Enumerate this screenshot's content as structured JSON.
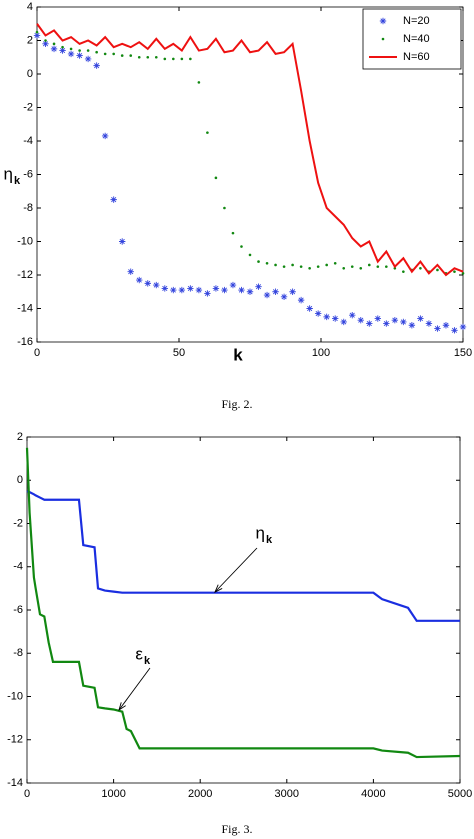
{
  "chart_data": [
    {
      "type": "line",
      "caption": "Fig. 2.",
      "xlabel": "k",
      "ylabel": "η",
      "ylabel_subscript": "k",
      "xlim": [
        0,
        150
      ],
      "xticks": [
        0,
        50,
        100,
        150
      ],
      "ylim": [
        -16,
        4
      ],
      "yticks": [
        -16,
        -14,
        -12,
        -10,
        -8,
        -6,
        -4,
        -2,
        0,
        2,
        4
      ],
      "legend": "upper right",
      "grid": false,
      "x": [
        0,
        3,
        6,
        9,
        12,
        15,
        18,
        21,
        24,
        27,
        30,
        33,
        36,
        39,
        42,
        45,
        48,
        51,
        54,
        57,
        60,
        63,
        66,
        69,
        72,
        75,
        78,
        81,
        84,
        87,
        90,
        93,
        96,
        99,
        102,
        105,
        108,
        111,
        114,
        117,
        120,
        123,
        126,
        129,
        132,
        135,
        138,
        141,
        144,
        147,
        150
      ],
      "series": [
        {
          "name": "N=20",
          "color": "#3344dd",
          "marker": "*",
          "values": [
            2.3,
            1.8,
            1.5,
            1.4,
            1.2,
            1.1,
            0.9,
            0.5,
            -3.7,
            -7.5,
            -10,
            -11.8,
            -12.3,
            -12.5,
            -12.6,
            -12.8,
            -12.9,
            -12.9,
            -12.8,
            -12.9,
            -13.1,
            -12.8,
            -12.9,
            -12.6,
            -12.9,
            -13.0,
            -12.7,
            -13.2,
            -13.0,
            -13.3,
            -13.0,
            -13.5,
            -14.0,
            -14.3,
            -14.5,
            -14.6,
            -14.8,
            -14.4,
            -14.7,
            -14.9,
            -14.6,
            -14.9,
            -14.7,
            -14.8,
            -15.0,
            -14.6,
            -14.9,
            -15.2,
            -15.0,
            -15.3,
            -15.1
          ]
        },
        {
          "name": "N=40",
          "color": "#118811",
          "marker": ".",
          "values": [
            2.5,
            2.0,
            1.8,
            1.6,
            1.5,
            1.4,
            1.4,
            1.3,
            1.2,
            1.2,
            1.1,
            1.1,
            1.0,
            1.0,
            1.0,
            0.9,
            0.9,
            0.9,
            0.9,
            -0.5,
            -3.5,
            -6.2,
            -8.0,
            -9.5,
            -10.3,
            -10.8,
            -11.2,
            -11.3,
            -11.4,
            -11.5,
            -11.4,
            -11.5,
            -11.6,
            -11.5,
            -11.4,
            -11.3,
            -11.6,
            -11.5,
            -11.6,
            -11.4,
            -11.5,
            -11.5,
            -11.6,
            -11.8,
            -11.7,
            -11.6,
            -11.8,
            -11.7,
            -11.9,
            -11.8,
            -11.9
          ]
        },
        {
          "name": "N=60",
          "color": "#ee1111",
          "marker": "-",
          "values": [
            3.0,
            2.3,
            2.6,
            2.0,
            2.2,
            1.8,
            2.0,
            1.7,
            2.2,
            1.6,
            1.8,
            1.6,
            1.9,
            1.5,
            2.1,
            1.5,
            1.8,
            1.4,
            2.2,
            1.4,
            1.5,
            2.1,
            1.3,
            1.4,
            2.0,
            1.3,
            1.4,
            1.9,
            1.2,
            1.3,
            1.8,
            -1.0,
            -4.0,
            -6.5,
            -8.0,
            -8.5,
            -9.0,
            -9.8,
            -10.3,
            -10.0,
            -11.2,
            -10.6,
            -11.5,
            -11.0,
            -11.8,
            -11.2,
            -11.9,
            -11.4,
            -12.0,
            -11.6,
            -11.8
          ]
        }
      ]
    },
    {
      "type": "line",
      "caption": "Fig. 3.",
      "xlim": [
        0,
        5000
      ],
      "xticks": [
        0,
        1000,
        2000,
        3000,
        4000,
        5000
      ],
      "ylim": [
        -14,
        2
      ],
      "yticks": [
        -14,
        -12,
        -10,
        -8,
        -6,
        -4,
        -2,
        0,
        2
      ],
      "grid": false,
      "x": [
        0,
        30,
        80,
        100,
        150,
        200,
        250,
        300,
        600,
        650,
        780,
        820,
        900,
        1000,
        1100,
        1150,
        1200,
        1300,
        4000,
        4100,
        4400,
        4500,
        5000
      ],
      "series": [
        {
          "color": "#1a2ee0",
          "marker": "-",
          "values": [
            -0.5,
            -0.55,
            -0.65,
            -0.7,
            -0.8,
            -0.9,
            -0.9,
            -0.9,
            -0.9,
            -3.0,
            -3.1,
            -5.0,
            -5.1,
            -5.15,
            -5.2,
            -5.2,
            -5.2,
            -5.2,
            -5.2,
            -5.5,
            -5.9,
            -6.5,
            -6.5
          ]
        },
        {
          "color": "#118811",
          "marker": "-",
          "values": [
            1.5,
            -1.5,
            -4.5,
            -5.0,
            -6.2,
            -6.3,
            -7.5,
            -8.4,
            -8.4,
            -9.5,
            -9.6,
            -10.5,
            -10.55,
            -10.6,
            -10.7,
            -11.5,
            -11.6,
            -12.4,
            -12.4,
            -12.5,
            -12.6,
            -12.8,
            -12.75
          ]
        }
      ],
      "annotations": [
        {
          "text": "η",
          "subscript": "k"
        },
        {
          "text": "ε",
          "subscript": "k"
        }
      ]
    }
  ]
}
